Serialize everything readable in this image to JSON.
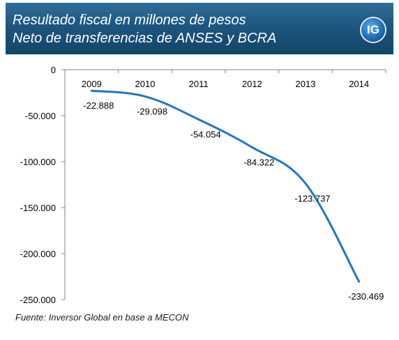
{
  "header": {
    "title_line1": "Resultado fiscal en millones de pesos",
    "title_line2": "Neto de transferencias de ANSES y BCRA",
    "logo_text": "IG"
  },
  "chart_data": {
    "type": "line",
    "categories": [
      "2009",
      "2010",
      "2011",
      "2012",
      "2013",
      "2014"
    ],
    "series": [
      {
        "values": [
          -22888,
          -29098,
          -54054,
          -84322,
          -123737,
          -230469
        ],
        "labels": [
          "-22.888",
          "-29.098",
          "-54.054",
          "-84.322",
          "-123.737",
          "-230.469"
        ],
        "color": "#1f77c4"
      }
    ],
    "ylim": [
      -250000,
      0
    ],
    "yticks": [
      0,
      -50000,
      -100000,
      -150000,
      -200000,
      -250000
    ],
    "ytick_labels": [
      "0",
      "-50.000",
      "-100.000",
      "-150.000",
      "-200.000",
      "-250.000"
    ],
    "x_axis_position": "top",
    "grid": false,
    "smooth": true
  },
  "source_text": "Fuente: Inversor Global en base a MECON"
}
